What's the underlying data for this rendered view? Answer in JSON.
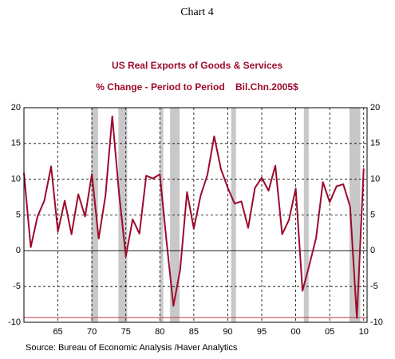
{
  "chart_data": {
    "type": "line",
    "header": "Chart 4",
    "title": "US Real Exports of Goods & Services",
    "subtitle": "% Change - Period to Period    Bil.Chn.2005$",
    "source": "Source:  Bureau of Economic Analysis /Haver Analytics",
    "x": [
      1960,
      1961,
      1962,
      1963,
      1964,
      1965,
      1966,
      1967,
      1968,
      1969,
      1970,
      1971,
      1972,
      1973,
      1974,
      1975,
      1976,
      1977,
      1978,
      1979,
      1980,
      1981,
      1982,
      1983,
      1984,
      1985,
      1986,
      1987,
      1988,
      1989,
      1990,
      1991,
      1992,
      1993,
      1994,
      1995,
      1996,
      1997,
      1998,
      1999,
      2000,
      2001,
      2002,
      2003,
      2004,
      2005,
      2006,
      2007,
      2008,
      2009,
      2010
    ],
    "series": [
      {
        "color": "#9c0a2c",
        "values": [
          10.9,
          0.5,
          4.8,
          7.0,
          11.8,
          2.7,
          7.0,
          2.3,
          7.9,
          4.8,
          10.7,
          1.7,
          7.7,
          18.8,
          8.0,
          -0.8,
          4.4,
          2.4,
          10.5,
          10.1,
          10.7,
          1.2,
          -7.7,
          -2.6,
          8.2,
          3.1,
          7.7,
          10.6,
          16.0,
          11.4,
          8.8,
          6.6,
          6.9,
          3.2,
          8.8,
          10.2,
          8.4,
          11.9,
          2.3,
          4.3,
          8.7,
          -5.6,
          -2.0,
          1.8,
          9.6,
          6.8,
          9.0,
          9.3,
          6.2,
          -9.4,
          11.5
        ]
      }
    ],
    "recessions": [
      [
        1969.9,
        1970.9
      ],
      [
        1973.9,
        1975.2
      ],
      [
        1980.0,
        1980.5
      ],
      [
        1981.5,
        1982.9
      ],
      [
        1990.5,
        1991.2
      ],
      [
        2001.2,
        2001.9
      ],
      [
        2007.9,
        2009.5
      ]
    ],
    "xlim": [
      1960,
      2010.5
    ],
    "xticks": [
      {
        "value": 1965,
        "label": "65"
      },
      {
        "value": 1970,
        "label": "70"
      },
      {
        "value": 1975,
        "label": "75"
      },
      {
        "value": 1980,
        "label": "80"
      },
      {
        "value": 1985,
        "label": "85"
      },
      {
        "value": 1990,
        "label": "90"
      },
      {
        "value": 1995,
        "label": "95"
      },
      {
        "value": 2000,
        "label": "00"
      },
      {
        "value": 2005,
        "label": "05"
      },
      {
        "value": 2010,
        "label": "10"
      }
    ],
    "ylim": [
      -10,
      20
    ],
    "yticks": [
      -10,
      -5,
      0,
      5,
      10,
      15,
      20
    ],
    "grid": true
  }
}
